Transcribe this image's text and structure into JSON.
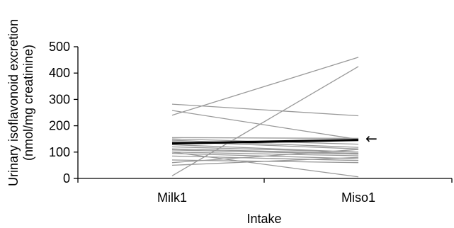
{
  "chart_data": {
    "type": "line",
    "title": "",
    "xlabel": "Intake",
    "ylabel_line1": "Urinary isoflavonoid excretion",
    "ylabel_line2": "(nmol/mg creatinine)",
    "categories": [
      "Milk1",
      "Miso1"
    ],
    "ylim": [
      0,
      500
    ],
    "yticks": [
      0,
      100,
      200,
      300,
      400,
      500
    ],
    "grid": false,
    "legend": "none",
    "colors": {
      "individual": "#999999",
      "mean": "#000000"
    },
    "individual_series": [
      {
        "values": [
          10,
          425
        ]
      },
      {
        "values": [
          240,
          460
        ]
      },
      {
        "values": [
          282,
          238
        ]
      },
      {
        "values": [
          258,
          148
        ]
      },
      {
        "values": [
          155,
          152
        ]
      },
      {
        "values": [
          150,
          130
        ]
      },
      {
        "values": [
          145,
          118
        ]
      },
      {
        "values": [
          140,
          112
        ]
      },
      {
        "values": [
          128,
          100
        ]
      },
      {
        "values": [
          120,
          100
        ]
      },
      {
        "values": [
          112,
          95
        ]
      },
      {
        "values": [
          108,
          92
        ]
      },
      {
        "values": [
          100,
          86
        ]
      },
      {
        "values": [
          95,
          75
        ]
      },
      {
        "values": [
          85,
          68
        ]
      },
      {
        "values": [
          70,
          60
        ]
      },
      {
        "values": [
          60,
          110
        ]
      },
      {
        "values": [
          50,
          80
        ]
      },
      {
        "values": [
          100,
          6
        ]
      }
    ],
    "mean_series": {
      "values": [
        133,
        146
      ]
    },
    "annotations": [
      {
        "text": "←",
        "attached_to": "mean_series"
      }
    ]
  }
}
